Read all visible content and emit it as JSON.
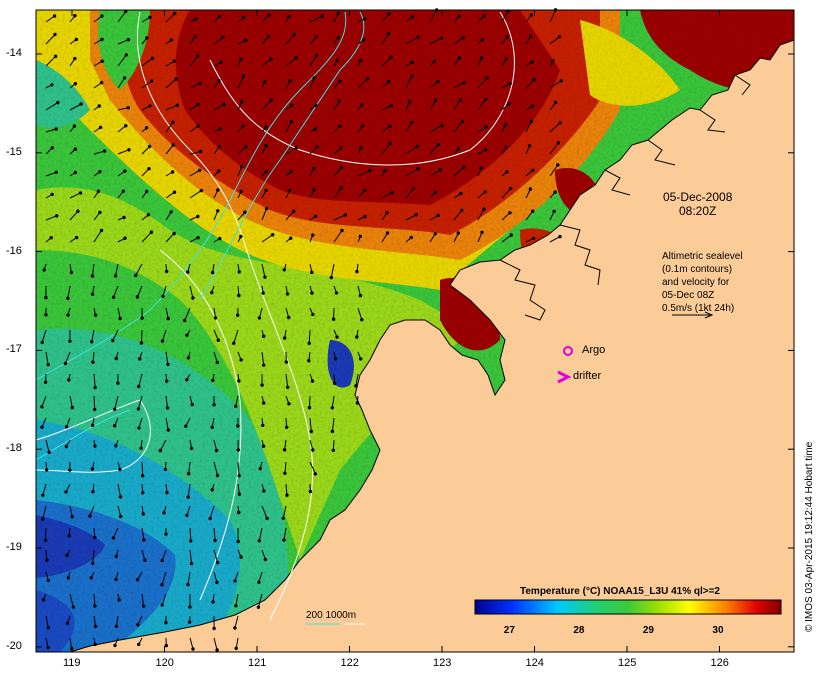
{
  "date_label": "05-Dec-2008",
  "time_label": "08:20Z",
  "altimetry_note": [
    "Altimetric sealevel",
    "(0.1m contours)",
    "and velocity for",
    "05-Dec 08Z",
    "0.5m/s (1kt 24h)"
  ],
  "legend_argo": "Argo",
  "legend_drifter": "drifter",
  "depth_legend": "200  1000m",
  "colorbar": {
    "title": "Temperature (°C) NOAA15_L3U 41% ql>=2",
    "ticks": [
      "27",
      "28",
      "29",
      "30"
    ],
    "range": [
      26.5,
      30.9
    ]
  },
  "credit": "© IMOS 03-Apr-2015 19:12:44 Hobart time",
  "x_ticks": [
    "119",
    "120",
    "121",
    "122",
    "123",
    "124",
    "125",
    "126"
  ],
  "y_ticks": [
    "-14",
    "-15",
    "-16",
    "-17",
    "-18",
    "-19",
    "-20"
  ],
  "colors": {
    "land": "#fccc98",
    "hot": "#9b0000",
    "warm": "#e8820a",
    "mid": "#e6d400",
    "cool": "#3ac43a",
    "cold": "#19a9c8",
    "coldest": "#1a3ab4",
    "argo": "#e000e0",
    "drifter": "#e000e0"
  }
}
